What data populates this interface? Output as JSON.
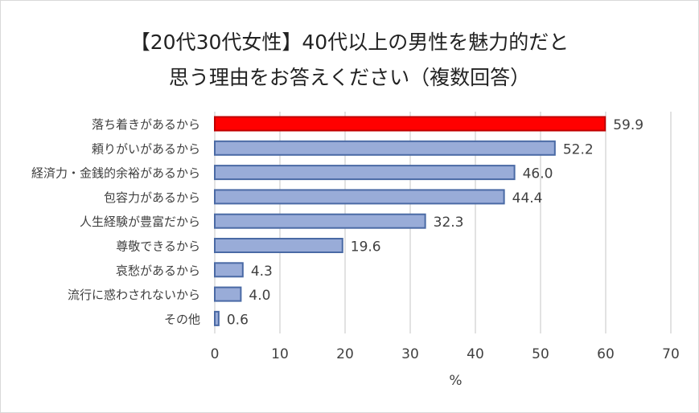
{
  "chart_data": {
    "type": "bar",
    "orientation": "horizontal",
    "title_line1": "【20代30代女性】40代以上の男性を魅力的だと",
    "title_line2": "思う理由をお答えください（複数回答）",
    "categories": [
      "落ち着きがあるから",
      "頼りがいがあるから",
      "経済力・金銭的余裕があるから",
      "包容力があるから",
      "人生経験が豊富だから",
      "尊敬できるから",
      "哀愁があるから",
      "流行に惑わされないから",
      "その他"
    ],
    "values": [
      59.9,
      52.2,
      46.0,
      44.4,
      32.3,
      19.6,
      4.3,
      4.0,
      0.6
    ],
    "data_labels": [
      "59.9",
      "52.2",
      "46.0",
      "44.4",
      "32.3",
      "19.6",
      "4.3",
      "4.0",
      "0.6"
    ],
    "xlabel": "%",
    "ylabel": "",
    "xlim": [
      0,
      70
    ],
    "xticks": [
      "0",
      "10",
      "20",
      "30",
      "40",
      "50",
      "60",
      "70"
    ],
    "grid": true,
    "colors": {
      "highlight": "#ff0000",
      "highlight_border": "#c00000",
      "bar": "#99acd8",
      "bar_border": "#4a6aa5",
      "grid": "#d9d9d9"
    }
  }
}
